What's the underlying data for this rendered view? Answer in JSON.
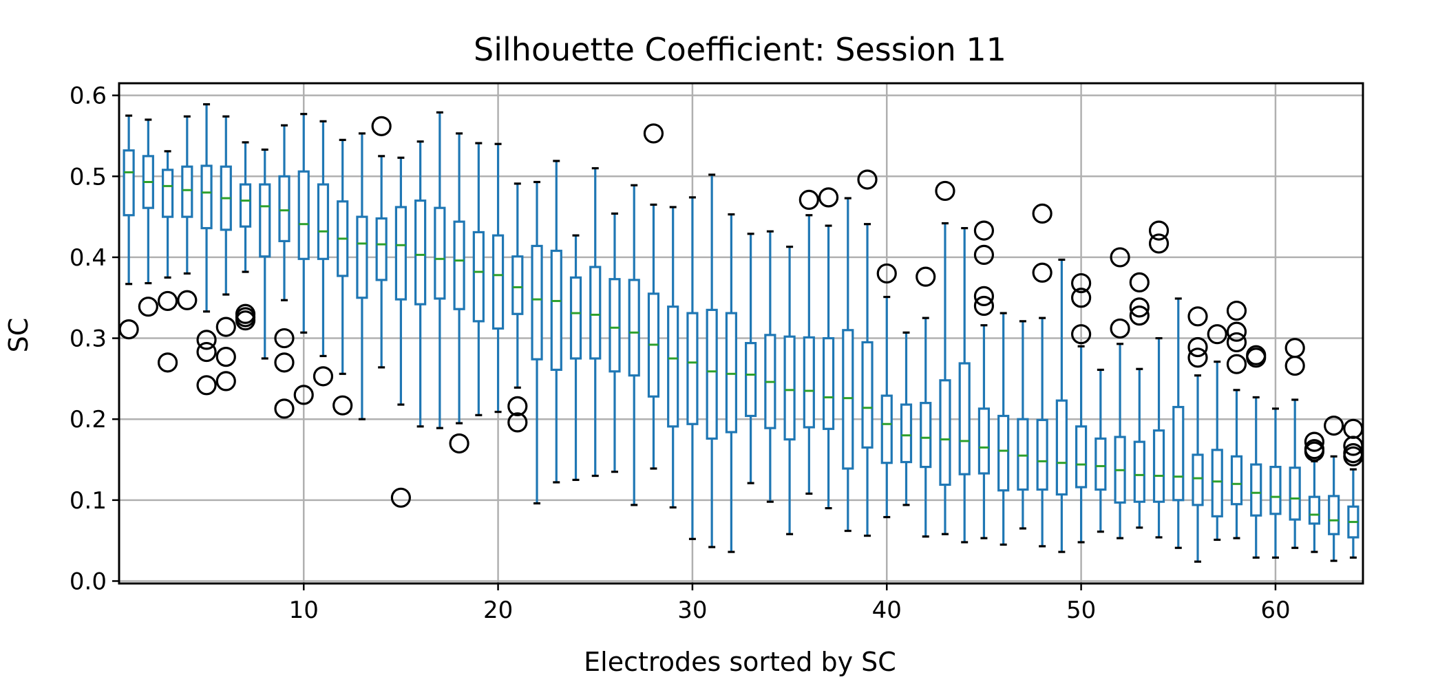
{
  "chart_data": {
    "type": "boxplot",
    "title": "Silhouette Coefficient: Session 11",
    "xlabel": "Electrodes sorted by SC",
    "ylabel": "SC",
    "xlim": [
      0.5,
      64.5
    ],
    "ylim": [
      -0.003,
      0.615
    ],
    "x_ticks": [
      10,
      20,
      30,
      40,
      50,
      60
    ],
    "x_tick_labels": [
      "10",
      "20",
      "30",
      "40",
      "50",
      "60"
    ],
    "y_ticks": [
      0.0,
      0.1,
      0.2,
      0.3,
      0.4,
      0.5,
      0.6
    ],
    "y_tick_labels": [
      "0.0",
      "0.1",
      "0.2",
      "0.3",
      "0.4",
      "0.5",
      "0.6"
    ],
    "grid": true,
    "colors": {
      "box": "#1f77b4",
      "median": "#2ca02c",
      "caps": "#000000",
      "outliers": "#000000",
      "grid": "#b0b0b0"
    },
    "boxes": [
      {
        "x": 1,
        "min": 0.367,
        "q1": 0.452,
        "median": 0.505,
        "q3": 0.532,
        "max": 0.575,
        "outliers": [
          0.311
        ]
      },
      {
        "x": 2,
        "min": 0.368,
        "q1": 0.461,
        "median": 0.493,
        "q3": 0.525,
        "max": 0.57,
        "outliers": [
          0.339
        ]
      },
      {
        "x": 3,
        "min": 0.375,
        "q1": 0.45,
        "median": 0.488,
        "q3": 0.508,
        "max": 0.531,
        "outliers": [
          0.346,
          0.27
        ]
      },
      {
        "x": 4,
        "min": 0.38,
        "q1": 0.45,
        "median": 0.483,
        "q3": 0.512,
        "max": 0.574,
        "outliers": [
          0.347
        ]
      },
      {
        "x": 5,
        "min": 0.333,
        "q1": 0.436,
        "median": 0.48,
        "q3": 0.513,
        "max": 0.589,
        "outliers": [
          0.298,
          0.283,
          0.242
        ]
      },
      {
        "x": 6,
        "min": 0.354,
        "q1": 0.434,
        "median": 0.473,
        "q3": 0.512,
        "max": 0.574,
        "outliers": [
          0.314,
          0.277,
          0.247
        ]
      },
      {
        "x": 7,
        "min": 0.382,
        "q1": 0.438,
        "median": 0.47,
        "q3": 0.49,
        "max": 0.542,
        "outliers": [
          0.33,
          0.326,
          0.322
        ]
      },
      {
        "x": 8,
        "min": 0.275,
        "q1": 0.401,
        "median": 0.463,
        "q3": 0.49,
        "max": 0.533,
        "outliers": []
      },
      {
        "x": 9,
        "min": 0.347,
        "q1": 0.42,
        "median": 0.458,
        "q3": 0.5,
        "max": 0.563,
        "outliers": [
          0.3,
          0.27,
          0.213
        ]
      },
      {
        "x": 10,
        "min": 0.307,
        "q1": 0.398,
        "median": 0.441,
        "q3": 0.506,
        "max": 0.577,
        "outliers": [
          0.23
        ]
      },
      {
        "x": 11,
        "min": 0.278,
        "q1": 0.398,
        "median": 0.432,
        "q3": 0.49,
        "max": 0.568,
        "outliers": [
          0.253
        ]
      },
      {
        "x": 12,
        "min": 0.256,
        "q1": 0.377,
        "median": 0.423,
        "q3": 0.469,
        "max": 0.545,
        "outliers": [
          0.217
        ]
      },
      {
        "x": 13,
        "min": 0.2,
        "q1": 0.35,
        "median": 0.417,
        "q3": 0.45,
        "max": 0.553,
        "outliers": []
      },
      {
        "x": 14,
        "min": 0.264,
        "q1": 0.372,
        "median": 0.416,
        "q3": 0.448,
        "max": 0.525,
        "outliers": [
          0.562
        ]
      },
      {
        "x": 15,
        "min": 0.218,
        "q1": 0.348,
        "median": 0.415,
        "q3": 0.462,
        "max": 0.523,
        "outliers": [
          0.103
        ]
      },
      {
        "x": 16,
        "min": 0.191,
        "q1": 0.342,
        "median": 0.403,
        "q3": 0.47,
        "max": 0.543,
        "outliers": []
      },
      {
        "x": 17,
        "min": 0.189,
        "q1": 0.349,
        "median": 0.398,
        "q3": 0.461,
        "max": 0.579,
        "outliers": []
      },
      {
        "x": 18,
        "min": 0.195,
        "q1": 0.336,
        "median": 0.396,
        "q3": 0.444,
        "max": 0.553,
        "outliers": [
          0.17
        ]
      },
      {
        "x": 19,
        "min": 0.205,
        "q1": 0.321,
        "median": 0.382,
        "q3": 0.431,
        "max": 0.541,
        "outliers": []
      },
      {
        "x": 20,
        "min": 0.209,
        "q1": 0.312,
        "median": 0.378,
        "q3": 0.427,
        "max": 0.54,
        "outliers": []
      },
      {
        "x": 21,
        "min": 0.239,
        "q1": 0.33,
        "median": 0.363,
        "q3": 0.401,
        "max": 0.491,
        "outliers": [
          0.216,
          0.196
        ]
      },
      {
        "x": 22,
        "min": 0.096,
        "q1": 0.274,
        "median": 0.348,
        "q3": 0.414,
        "max": 0.493,
        "outliers": []
      },
      {
        "x": 23,
        "min": 0.122,
        "q1": 0.261,
        "median": 0.346,
        "q3": 0.408,
        "max": 0.519,
        "outliers": []
      },
      {
        "x": 24,
        "min": 0.125,
        "q1": 0.275,
        "median": 0.331,
        "q3": 0.375,
        "max": 0.427,
        "outliers": []
      },
      {
        "x": 25,
        "min": 0.13,
        "q1": 0.275,
        "median": 0.329,
        "q3": 0.388,
        "max": 0.51,
        "outliers": []
      },
      {
        "x": 26,
        "min": 0.135,
        "q1": 0.259,
        "median": 0.313,
        "q3": 0.373,
        "max": 0.454,
        "outliers": []
      },
      {
        "x": 27,
        "min": 0.094,
        "q1": 0.254,
        "median": 0.307,
        "q3": 0.372,
        "max": 0.489,
        "outliers": []
      },
      {
        "x": 28,
        "min": 0.139,
        "q1": 0.228,
        "median": 0.292,
        "q3": 0.355,
        "max": 0.465,
        "outliers": [
          0.553
        ]
      },
      {
        "x": 29,
        "min": 0.091,
        "q1": 0.191,
        "median": 0.275,
        "q3": 0.339,
        "max": 0.462,
        "outliers": []
      },
      {
        "x": 30,
        "min": 0.052,
        "q1": 0.194,
        "median": 0.27,
        "q3": 0.331,
        "max": 0.474,
        "outliers": []
      },
      {
        "x": 31,
        "min": 0.042,
        "q1": 0.176,
        "median": 0.259,
        "q3": 0.335,
        "max": 0.502,
        "outliers": []
      },
      {
        "x": 32,
        "min": 0.036,
        "q1": 0.184,
        "median": 0.256,
        "q3": 0.331,
        "max": 0.453,
        "outliers": []
      },
      {
        "x": 33,
        "min": 0.121,
        "q1": 0.204,
        "median": 0.255,
        "q3": 0.294,
        "max": 0.429,
        "outliers": []
      },
      {
        "x": 34,
        "min": 0.098,
        "q1": 0.189,
        "median": 0.246,
        "q3": 0.304,
        "max": 0.432,
        "outliers": []
      },
      {
        "x": 35,
        "min": 0.058,
        "q1": 0.175,
        "median": 0.236,
        "q3": 0.302,
        "max": 0.413,
        "outliers": []
      },
      {
        "x": 36,
        "min": 0.108,
        "q1": 0.19,
        "median": 0.235,
        "q3": 0.301,
        "max": 0.452,
        "outliers": [
          0.471
        ]
      },
      {
        "x": 37,
        "min": 0.09,
        "q1": 0.188,
        "median": 0.227,
        "q3": 0.3,
        "max": 0.439,
        "outliers": [
          0.474
        ]
      },
      {
        "x": 38,
        "min": 0.062,
        "q1": 0.139,
        "median": 0.226,
        "q3": 0.31,
        "max": 0.473,
        "outliers": []
      },
      {
        "x": 39,
        "min": 0.056,
        "q1": 0.165,
        "median": 0.214,
        "q3": 0.295,
        "max": 0.441,
        "outliers": [
          0.496
        ]
      },
      {
        "x": 40,
        "min": 0.079,
        "q1": 0.146,
        "median": 0.194,
        "q3": 0.229,
        "max": 0.351,
        "outliers": [
          0.38
        ]
      },
      {
        "x": 41,
        "min": 0.094,
        "q1": 0.147,
        "median": 0.18,
        "q3": 0.218,
        "max": 0.307,
        "outliers": []
      },
      {
        "x": 42,
        "min": 0.055,
        "q1": 0.141,
        "median": 0.177,
        "q3": 0.22,
        "max": 0.325,
        "outliers": [
          0.376
        ]
      },
      {
        "x": 43,
        "min": 0.058,
        "q1": 0.119,
        "median": 0.175,
        "q3": 0.248,
        "max": 0.442,
        "outliers": [
          0.482
        ]
      },
      {
        "x": 44,
        "min": 0.048,
        "q1": 0.132,
        "median": 0.173,
        "q3": 0.269,
        "max": 0.436,
        "outliers": []
      },
      {
        "x": 45,
        "min": 0.053,
        "q1": 0.133,
        "median": 0.165,
        "q3": 0.213,
        "max": 0.316,
        "outliers": [
          0.433,
          0.403,
          0.352,
          0.34
        ]
      },
      {
        "x": 46,
        "min": 0.045,
        "q1": 0.112,
        "median": 0.161,
        "q3": 0.204,
        "max": 0.331,
        "outliers": []
      },
      {
        "x": 47,
        "min": 0.065,
        "q1": 0.113,
        "median": 0.155,
        "q3": 0.2,
        "max": 0.321,
        "outliers": []
      },
      {
        "x": 48,
        "min": 0.043,
        "q1": 0.113,
        "median": 0.148,
        "q3": 0.199,
        "max": 0.325,
        "outliers": [
          0.454,
          0.381
        ]
      },
      {
        "x": 49,
        "min": 0.036,
        "q1": 0.107,
        "median": 0.146,
        "q3": 0.223,
        "max": 0.397,
        "outliers": []
      },
      {
        "x": 50,
        "min": 0.048,
        "q1": 0.116,
        "median": 0.144,
        "q3": 0.191,
        "max": 0.29,
        "outliers": [
          0.368,
          0.35,
          0.305
        ]
      },
      {
        "x": 51,
        "min": 0.061,
        "q1": 0.113,
        "median": 0.142,
        "q3": 0.176,
        "max": 0.261,
        "outliers": []
      },
      {
        "x": 52,
        "min": 0.053,
        "q1": 0.097,
        "median": 0.137,
        "q3": 0.178,
        "max": 0.293,
        "outliers": [
          0.4,
          0.312
        ]
      },
      {
        "x": 53,
        "min": 0.066,
        "q1": 0.098,
        "median": 0.131,
        "q3": 0.172,
        "max": 0.262,
        "outliers": [
          0.369,
          0.338,
          0.328
        ]
      },
      {
        "x": 54,
        "min": 0.054,
        "q1": 0.098,
        "median": 0.13,
        "q3": 0.186,
        "max": 0.3,
        "outliers": [
          0.433,
          0.417
        ]
      },
      {
        "x": 55,
        "min": 0.041,
        "q1": 0.1,
        "median": 0.129,
        "q3": 0.215,
        "max": 0.349,
        "outliers": []
      },
      {
        "x": 56,
        "min": 0.024,
        "q1": 0.094,
        "median": 0.127,
        "q3": 0.156,
        "max": 0.254,
        "outliers": [
          0.327,
          0.289,
          0.276
        ]
      },
      {
        "x": 57,
        "min": 0.051,
        "q1": 0.08,
        "median": 0.123,
        "q3": 0.162,
        "max": 0.271,
        "outliers": [
          0.305
        ]
      },
      {
        "x": 58,
        "min": 0.053,
        "q1": 0.095,
        "median": 0.12,
        "q3": 0.154,
        "max": 0.236,
        "outliers": [
          0.334,
          0.308,
          0.295,
          0.268
        ]
      },
      {
        "x": 59,
        "min": 0.029,
        "q1": 0.081,
        "median": 0.109,
        "q3": 0.144,
        "max": 0.227,
        "outliers": [
          0.279,
          0.276
        ]
      },
      {
        "x": 60,
        "min": 0.029,
        "q1": 0.083,
        "median": 0.104,
        "q3": 0.141,
        "max": 0.213,
        "outliers": []
      },
      {
        "x": 61,
        "min": 0.041,
        "q1": 0.076,
        "median": 0.102,
        "q3": 0.14,
        "max": 0.224,
        "outliers": [
          0.288,
          0.266
        ]
      },
      {
        "x": 62,
        "min": 0.036,
        "q1": 0.071,
        "median": 0.082,
        "q3": 0.104,
        "max": 0.148,
        "outliers": [
          0.172,
          0.163,
          0.16
        ]
      },
      {
        "x": 63,
        "min": 0.025,
        "q1": 0.058,
        "median": 0.075,
        "q3": 0.105,
        "max": 0.154,
        "outliers": [
          0.192
        ]
      },
      {
        "x": 64,
        "min": 0.029,
        "q1": 0.054,
        "median": 0.073,
        "q3": 0.092,
        "max": 0.138,
        "outliers": [
          0.188,
          0.167,
          0.158,
          0.154
        ]
      }
    ]
  }
}
